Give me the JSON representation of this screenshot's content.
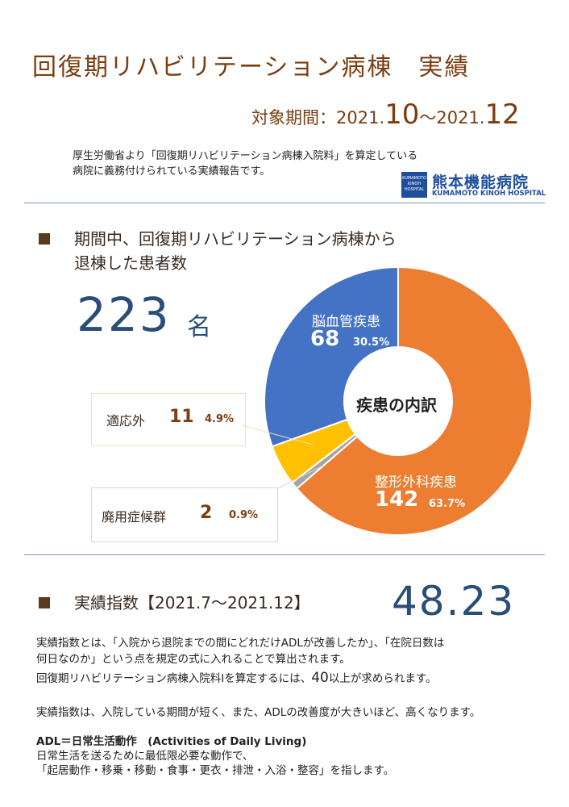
{
  "header": {
    "title": "回復期リハビリテーション病棟　実績",
    "period_label": "対象期間：",
    "period_start_pre": "2021.",
    "period_start_month": "10",
    "period_sep": "〜2021.",
    "period_end_month": "12",
    "note_line1": "厚生労働省より「回復期リハビリテーション病棟入院料」を算定している",
    "note_line2": "病院に義務付けられている実績報告です。"
  },
  "logo": {
    "box_text": "KUMAMOTO KINOH HOSPITAL",
    "name_jp": "熊本機能病院",
    "name_en": "KUMAMOTO KINOH HOSPITAL",
    "color": "#1f4e9c"
  },
  "section1": {
    "heading_line1": "期間中、回復期リハビリテーション病棟から",
    "heading_line2": "退棟した患者数",
    "total": "223",
    "unit": "名"
  },
  "chart_data": {
    "type": "pie",
    "title": "疾患の内訳",
    "slices": [
      {
        "label": "整形外科疾患",
        "value": 142,
        "percent": "63.7%",
        "color": "#ed7d31"
      },
      {
        "label": "廃用症候群",
        "value": 2,
        "percent": "0.9%",
        "color": "#a5a5a5"
      },
      {
        "label": "適応外",
        "value": 11,
        "percent": "4.9%",
        "color": "#ffc000"
      },
      {
        "label": "脳血管疾患",
        "value": 68,
        "percent": "30.5%",
        "color": "#4472c4"
      }
    ]
  },
  "section2": {
    "heading": "実績指数【2021.7〜2021.12】",
    "value": "48.23",
    "p1_line1": "実績指数とは、「入院から退院までの間にどれだけADLが改善したか」、「在院日数は",
    "p1_line2": "何日なのか」という点を規定の式に入れることで算出されます。",
    "p2_pre": "回復期リハビリテーション病棟入院料Ⅰを算定するには、",
    "p2_num": "40",
    "p2_post": "以上が求められます。",
    "p3": "実績指数は、入院している期間が短く、また、ADLの改善度が大きいほど、高くなります。",
    "adl_title": "ADL＝日常生活動作　(Activities of Daily Living)",
    "adl_line1": "日常生活を送るために最低限必要な動作で、",
    "adl_line2": "「起居動作・移乗・移動・食事・更衣・排泄・入浴・整容」を指します。"
  }
}
